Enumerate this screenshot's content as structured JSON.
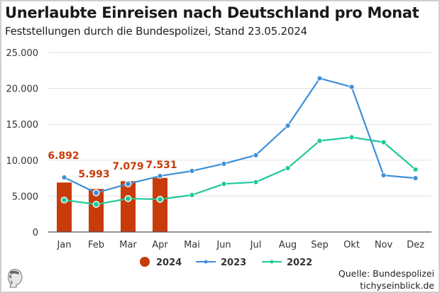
{
  "title": "Unerlaubte Einreisen nach Deutschland pro Monat",
  "subtitle": "Feststellungen durch die Bundespolizei, Stand 23.05.2024",
  "source": {
    "line1": "Quelle: Bundespolizei",
    "line2": "tichyseinblick.de"
  },
  "logo_icon": "classical-head-logo-icon",
  "chart_data": {
    "type": "bar",
    "title": "Unerlaubte Einreisen nach Deutschland pro Monat",
    "subtitle": "Feststellungen durch die Bundespolizei, Stand 23.05.2024",
    "xlabel": "",
    "ylabel": "",
    "ylim": [
      0,
      25000
    ],
    "yticks": [
      0,
      5000,
      10000,
      15000,
      20000,
      25000
    ],
    "ytick_labels": [
      "0",
      "5.000",
      "10.000",
      "15.000",
      "20.000",
      "25.000"
    ],
    "grid": true,
    "legend_position": "bottom-center",
    "categories": [
      "Jan",
      "Feb",
      "Mar",
      "Apr",
      "Mai",
      "Jun",
      "Jul",
      "Aug",
      "Sep",
      "Okt",
      "Nov",
      "Dez"
    ],
    "series": [
      {
        "name": "2024",
        "type": "bar",
        "color": "#c83b0a",
        "values": [
          6892,
          5993,
          7079,
          7531,
          null,
          null,
          null,
          null,
          null,
          null,
          null,
          null
        ],
        "labels": [
          "6.892",
          "5.993",
          "7.079",
          "7.531"
        ]
      },
      {
        "name": "2023",
        "type": "line",
        "color": "#3d8fd6",
        "values": [
          7600,
          5450,
          6700,
          7800,
          8500,
          9500,
          10700,
          14800,
          21400,
          20200,
          7900,
          7500
        ]
      },
      {
        "name": "2022",
        "type": "line",
        "color": "#1ec99a",
        "values": [
          4450,
          3850,
          4650,
          4550,
          5150,
          6700,
          6950,
          8900,
          12700,
          13200,
          12500,
          8700
        ]
      }
    ]
  }
}
